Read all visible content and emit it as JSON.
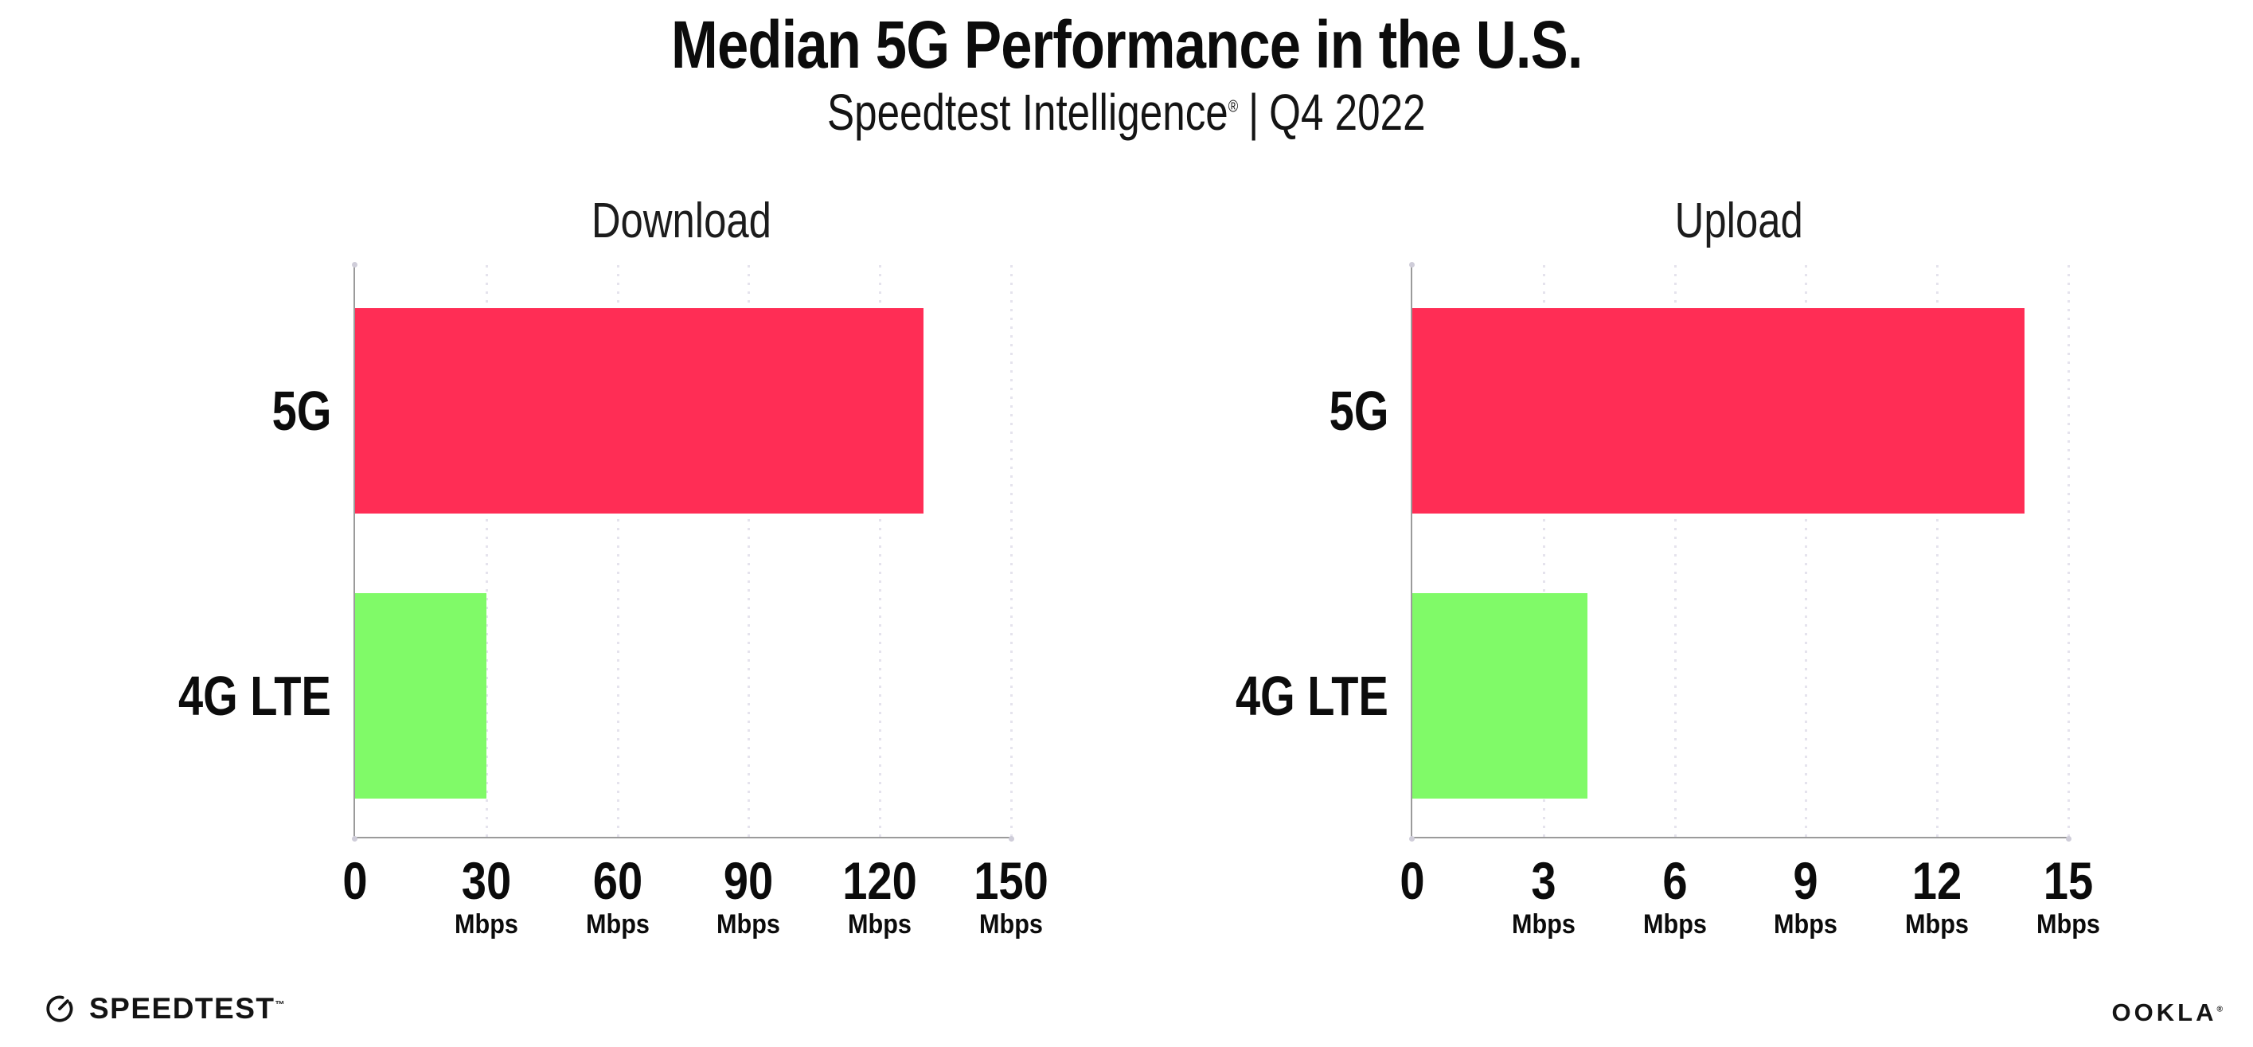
{
  "header": {
    "title": "Median 5G Performance in the U.S.",
    "subtitle_brand": "Speedtest Intelligence",
    "subtitle_reg": "®",
    "subtitle_sep": "|",
    "subtitle_period": "Q4 2022"
  },
  "colors": {
    "bar_5g": "#FF2D55",
    "bar_4g_lte": "#80FA68",
    "axis": "#9B9B9B",
    "gridline": "#E5E3ED",
    "text": "#0C0C0C"
  },
  "chart_data": [
    {
      "type": "bar",
      "orientation": "horizontal",
      "title": "Download",
      "categories": [
        "5G",
        "4G LTE"
      ],
      "values": [
        130,
        30
      ],
      "unit": "Mbps",
      "xlim": [
        0,
        150
      ],
      "xticks": [
        0,
        30,
        60,
        90,
        120,
        150
      ],
      "bar_colors": [
        "#FF2D55",
        "#80FA68"
      ],
      "grid": "dotted-vertical",
      "legend": "none"
    },
    {
      "type": "bar",
      "orientation": "horizontal",
      "title": "Upload",
      "categories": [
        "5G",
        "4G LTE"
      ],
      "values": [
        14,
        4
      ],
      "unit": "Mbps",
      "xlim": [
        0,
        15
      ],
      "xticks": [
        0,
        3,
        6,
        9,
        12,
        15
      ],
      "bar_colors": [
        "#FF2D55",
        "#80FA68"
      ],
      "grid": "dotted-vertical",
      "legend": "none"
    }
  ],
  "footer": {
    "speedtest": "SPEEDTEST",
    "speedtest_mark": "™",
    "ookla": "OOKLA",
    "ookla_mark": "®",
    "speedtest_icon": "gauge-icon"
  }
}
